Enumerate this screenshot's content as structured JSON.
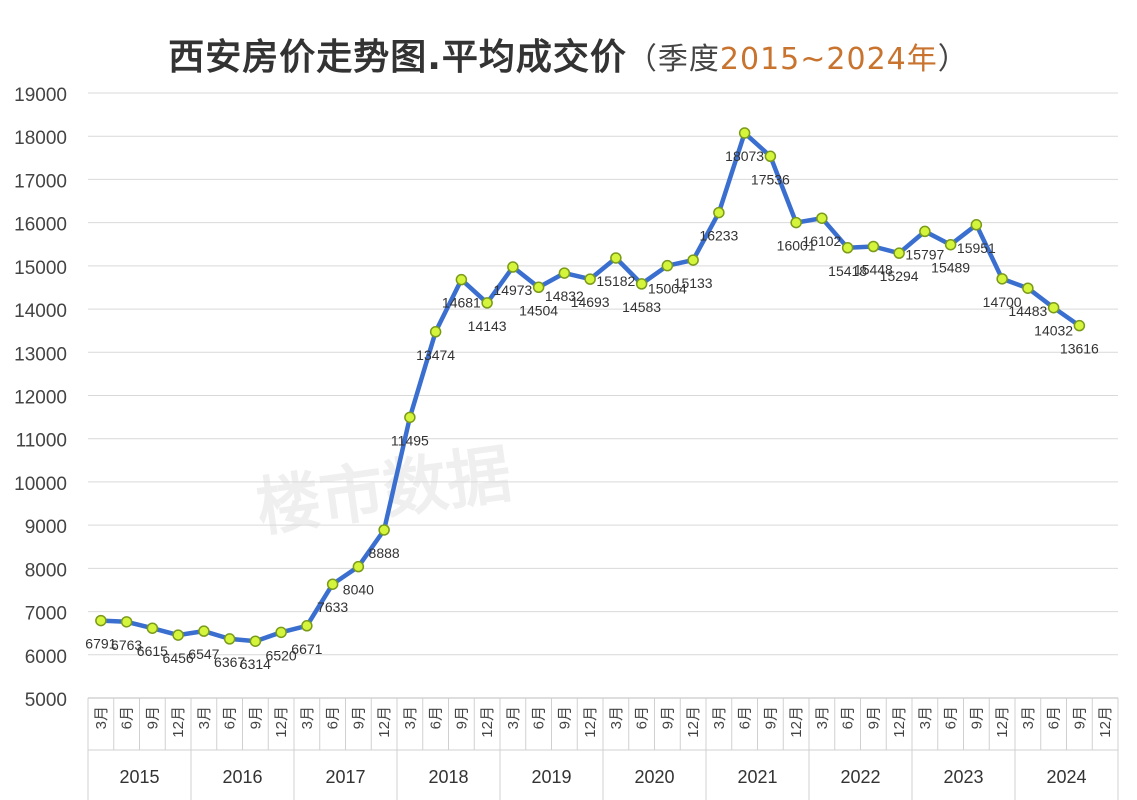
{
  "title": {
    "main": "西安房价走势图.平均成交价",
    "paren_open": "（季度",
    "range": "2015~2024年",
    "paren_close": "）"
  },
  "watermark": "楼市数据",
  "colors": {
    "line": "#3A6FD0",
    "marker_fill": "#D4F53C",
    "marker_stroke": "#7A9A1A",
    "accent": "#C8732E"
  },
  "chart_data": {
    "type": "line",
    "title": "西安房价走势图.平均成交价（季度2015~2024年）",
    "xlabel": "",
    "ylabel": "",
    "ylim": [
      5000,
      19000
    ],
    "yticks": [
      5000,
      6000,
      7000,
      8000,
      9000,
      10000,
      11000,
      12000,
      13000,
      14000,
      15000,
      16000,
      17000,
      18000,
      19000
    ],
    "grid": true,
    "legend": "none",
    "years": [
      "2015",
      "2016",
      "2017",
      "2018",
      "2019",
      "2020",
      "2021",
      "2022",
      "2023",
      "2024"
    ],
    "quarters": [
      "3月",
      "6月",
      "9月",
      "12月"
    ],
    "series": [
      {
        "values": [
          6791,
          6763,
          6615,
          6456,
          6547,
          6367,
          6314,
          6520,
          6671,
          7633,
          8040,
          8888,
          11495,
          13474,
          14681,
          14143,
          14973,
          14504,
          14832,
          14693,
          15182,
          14583,
          15004,
          15133,
          16233,
          18073,
          17536,
          16001,
          16102,
          15418,
          15448,
          15294,
          15797,
          15489,
          15951,
          14700,
          14483,
          14032,
          13616
        ]
      }
    ]
  }
}
